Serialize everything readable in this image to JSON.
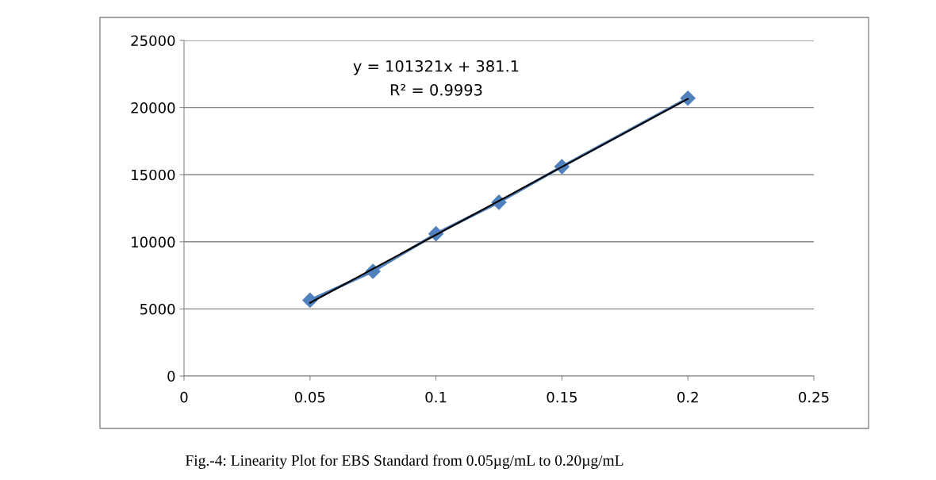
{
  "chart_data": {
    "type": "line",
    "xlim": [
      0,
      0.25
    ],
    "xticks": [
      0,
      0.05,
      0.1,
      0.15,
      0.2,
      0.25
    ],
    "ylim": [
      0,
      25000
    ],
    "yticks": [
      0,
      5000,
      10000,
      15000,
      20000,
      25000
    ],
    "grid": "y",
    "marker": "diamond",
    "line_style": "solid",
    "series": [
      {
        "color": "#4f81bd",
        "x": [
          0.05,
          0.075,
          0.1,
          0.125,
          0.15,
          0.2
        ],
        "values": [
          5650,
          7800,
          10600,
          12950,
          15600,
          20700
        ]
      },
      {
        "color": "#000000",
        "marker": "none",
        "x": [
          0.05,
          0.2
        ],
        "values": [
          5450,
          20650
        ]
      }
    ],
    "annotations": [
      "y = 101321x + 381.1",
      "R² = 0.9993",
      "Fig.-4: Linearity Plot for EBS Standard from 0.05µg/mL to 0.20µg/mL"
    ]
  }
}
